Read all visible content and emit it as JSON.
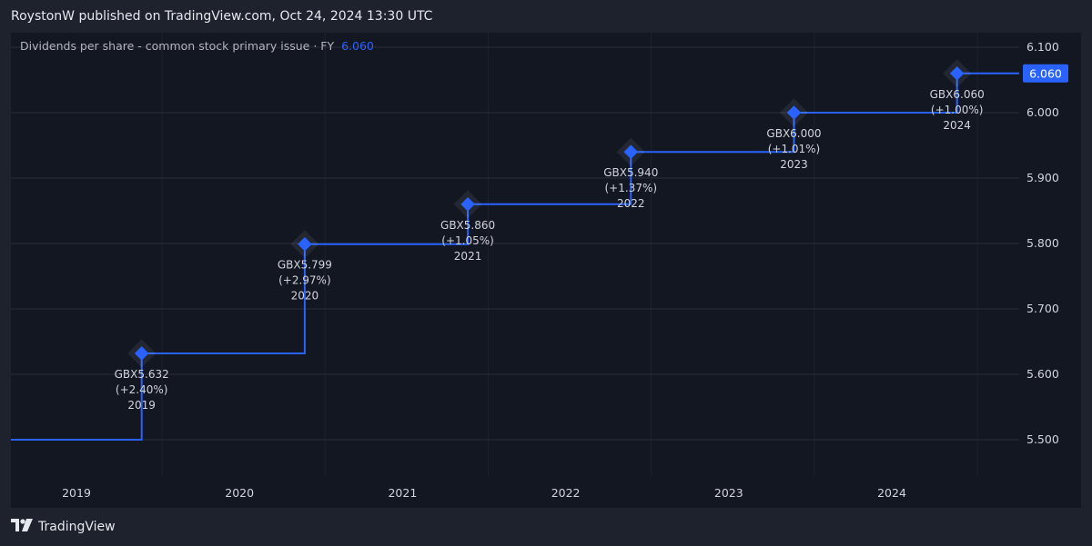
{
  "header": {
    "publish_text": "RoystonW published on TradingView.com, Oct 24, 2024 13:30 UTC"
  },
  "legend": {
    "label": "Dividends per share - common stock primary issue · FY",
    "value": "6.060"
  },
  "footer": {
    "brand": "TradingView"
  },
  "colors": {
    "line": "#2962ff",
    "background": "#131722",
    "grid": "#2a2e39",
    "text": "#d1d4dc"
  },
  "chart_data": {
    "type": "line",
    "step": true,
    "x_ticks": [
      "2019",
      "2020",
      "2021",
      "2022",
      "2023",
      "2024"
    ],
    "y_ticks": [
      "5.500",
      "5.600",
      "5.700",
      "5.800",
      "5.900",
      "6.000",
      "6.100"
    ],
    "ylim": [
      5.5,
      6.1
    ],
    "last_value_label": "6.060",
    "points": [
      {
        "year": 2019,
        "value": 5.632,
        "label": "GBX5.632",
        "change": "(+2.40%)",
        "year_label": "2019"
      },
      {
        "year": 2020,
        "value": 5.799,
        "label": "GBX5.799",
        "change": "(+2.97%)",
        "year_label": "2020"
      },
      {
        "year": 2021,
        "value": 5.86,
        "label": "GBX5.860",
        "change": "(+1.05%)",
        "year_label": "2021"
      },
      {
        "year": 2022,
        "value": 5.94,
        "label": "GBX5.940",
        "change": "(+1.37%)",
        "year_label": "2022"
      },
      {
        "year": 2023,
        "value": 6.0,
        "label": "GBX6.000",
        "change": "(+1.01%)",
        "year_label": "2023"
      },
      {
        "year": 2024,
        "value": 6.06,
        "label": "GBX6.060",
        "change": "(+1.00%)",
        "year_label": "2024"
      }
    ],
    "series_start_value": 5.5
  }
}
